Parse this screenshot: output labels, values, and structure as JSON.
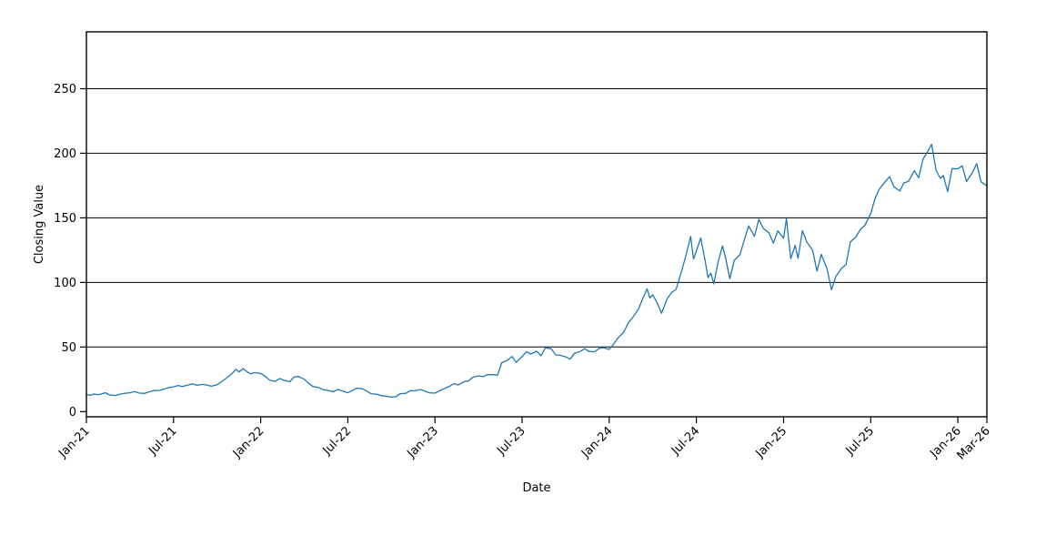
{
  "chart_data": {
    "type": "line",
    "title": "",
    "xlabel": "Date",
    "ylabel": "Closing Value",
    "series_name": "Closing Value",
    "series_color": "#1f77b4",
    "grid": true,
    "legend": "none",
    "gridline_values": [
      50,
      100,
      150,
      200,
      250
    ],
    "y_ticks": [
      0,
      50,
      100,
      150,
      200,
      250
    ],
    "ylim": [
      -4,
      294
    ],
    "x_unit": "months since Jan-2021",
    "xlim": [
      0,
      62
    ],
    "x_ticks": [
      {
        "label": "Jan-21",
        "m": 0
      },
      {
        "label": "Jul-21",
        "m": 6
      },
      {
        "label": "Jan-22",
        "m": 12
      },
      {
        "label": "Jul-22",
        "m": 18
      },
      {
        "label": "Jan-23",
        "m": 24
      },
      {
        "label": "Jul-23",
        "m": 30
      },
      {
        "label": "Jan-24",
        "m": 36
      },
      {
        "label": "Jul-24",
        "m": 42
      },
      {
        "label": "Jan-25",
        "m": 48
      },
      {
        "label": "Jul-25",
        "m": 54
      },
      {
        "label": "Jan-26",
        "m": 60
      },
      {
        "label": "Mar-26",
        "m": 62
      }
    ],
    "points": [
      [
        0,
        13.2
      ],
      [
        0.3,
        12.6
      ],
      [
        0.5,
        13.6
      ],
      [
        0.8,
        13.1
      ],
      [
        1,
        13.6
      ],
      [
        1.3,
        14.6
      ],
      [
        1.6,
        12.9
      ],
      [
        2,
        12.5
      ],
      [
        2.3,
        13.4
      ],
      [
        2.6,
        14.1
      ],
      [
        3,
        14.6
      ],
      [
        3.3,
        15.5
      ],
      [
        3.6,
        14.4
      ],
      [
        4,
        14.1
      ],
      [
        4.3,
        15.2
      ],
      [
        4.6,
        16.2
      ],
      [
        5,
        16.4
      ],
      [
        5.3,
        17.1
      ],
      [
        5.6,
        18.4
      ],
      [
        6,
        19.2
      ],
      [
        6.3,
        20.2
      ],
      [
        6.6,
        19.4
      ],
      [
        7,
        20.6
      ],
      [
        7.3,
        21.6
      ],
      [
        7.6,
        20.4
      ],
      [
        8,
        21.1
      ],
      [
        8.3,
        20.6
      ],
      [
        8.6,
        19.7
      ],
      [
        9,
        20.7
      ],
      [
        9.3,
        23.2
      ],
      [
        9.6,
        25.6
      ],
      [
        10,
        29.2
      ],
      [
        10.3,
        32.7
      ],
      [
        10.5,
        30.7
      ],
      [
        10.8,
        33.3
      ],
      [
        11,
        31.4
      ],
      [
        11.3,
        29.3
      ],
      [
        11.6,
        30.2
      ],
      [
        12,
        29.6
      ],
      [
        12.3,
        27.4
      ],
      [
        12.6,
        24.4
      ],
      [
        13,
        23.4
      ],
      [
        13.3,
        25.6
      ],
      [
        13.6,
        24.2
      ],
      [
        14,
        23.1
      ],
      [
        14.3,
        26.7
      ],
      [
        14.6,
        27.2
      ],
      [
        15,
        25.1
      ],
      [
        15.3,
        21.9
      ],
      [
        15.6,
        19.4
      ],
      [
        16,
        18.6
      ],
      [
        16.3,
        16.9
      ],
      [
        16.6,
        16.4
      ],
      [
        17,
        15.4
      ],
      [
        17.3,
        17.2
      ],
      [
        17.6,
        16.1
      ],
      [
        18,
        14.6
      ],
      [
        18.3,
        16.2
      ],
      [
        18.6,
        18.1
      ],
      [
        19,
        17.7
      ],
      [
        19.3,
        15.9
      ],
      [
        19.6,
        13.9
      ],
      [
        20,
        13.4
      ],
      [
        20.3,
        12.4
      ],
      [
        20.6,
        12.0
      ],
      [
        21,
        11.2
      ],
      [
        21.3,
        11.6
      ],
      [
        21.6,
        13.8
      ],
      [
        22,
        14.2
      ],
      [
        22.3,
        16.2
      ],
      [
        22.6,
        16.1
      ],
      [
        23,
        17.1
      ],
      [
        23.3,
        15.9
      ],
      [
        23.6,
        14.6
      ],
      [
        24,
        14.3
      ],
      [
        24.3,
        16.0
      ],
      [
        24.6,
        17.6
      ],
      [
        25,
        19.6
      ],
      [
        25.3,
        21.7
      ],
      [
        25.6,
        20.6
      ],
      [
        26,
        23.2
      ],
      [
        26.3,
        23.7
      ],
      [
        26.6,
        26.6
      ],
      [
        27,
        27.7
      ],
      [
        27.3,
        27.0
      ],
      [
        27.6,
        28.6
      ],
      [
        28,
        28.7
      ],
      [
        28.3,
        28.2
      ],
      [
        28.6,
        37.9
      ],
      [
        29,
        39.8
      ],
      [
        29.3,
        42.7
      ],
      [
        29.6,
        38.1
      ],
      [
        30,
        42.6
      ],
      [
        30.3,
        46.4
      ],
      [
        30.6,
        44.6
      ],
      [
        31,
        46.7
      ],
      [
        31.3,
        43.3
      ],
      [
        31.6,
        49.4
      ],
      [
        32,
        48.6
      ],
      [
        32.3,
        44.0
      ],
      [
        32.6,
        43.6
      ],
      [
        33,
        42.4
      ],
      [
        33.3,
        40.6
      ],
      [
        33.6,
        45.1
      ],
      [
        34,
        46.6
      ],
      [
        34.3,
        48.7
      ],
      [
        34.6,
        46.6
      ],
      [
        35,
        46.4
      ],
      [
        35.3,
        48.9
      ],
      [
        35.6,
        49.5
      ],
      [
        36,
        48.1
      ],
      [
        36.3,
        52.3
      ],
      [
        36.6,
        57.1
      ],
      [
        37,
        61.5
      ],
      [
        37.3,
        68.4
      ],
      [
        37.6,
        72.7
      ],
      [
        38,
        79.1
      ],
      [
        38.3,
        87.5
      ],
      [
        38.6,
        95.0
      ],
      [
        38.8,
        88.0
      ],
      [
        39,
        90.4
      ],
      [
        39.3,
        84.1
      ],
      [
        39.6,
        76.2
      ],
      [
        40,
        87.6
      ],
      [
        40.3,
        92.3
      ],
      [
        40.6,
        94.6
      ],
      [
        41,
        109.6
      ],
      [
        41.3,
        121.8
      ],
      [
        41.6,
        135.6
      ],
      [
        41.8,
        118.1
      ],
      [
        42,
        124.3
      ],
      [
        42.3,
        134.4
      ],
      [
        42.6,
        117.0
      ],
      [
        42.8,
        103.7
      ],
      [
        43,
        107.2
      ],
      [
        43.2,
        98.9
      ],
      [
        43.5,
        116.1
      ],
      [
        43.8,
        128.3
      ],
      [
        44,
        119.4
      ],
      [
        44.3,
        102.8
      ],
      [
        44.6,
        117.0
      ],
      [
        45,
        121.4
      ],
      [
        45.3,
        132.9
      ],
      [
        45.6,
        143.7
      ],
      [
        46,
        135.8
      ],
      [
        46.3,
        148.9
      ],
      [
        46.6,
        141.9
      ],
      [
        47,
        138.3
      ],
      [
        47.3,
        130.4
      ],
      [
        47.6,
        139.9
      ],
      [
        48,
        134.3
      ],
      [
        48.2,
        149.4
      ],
      [
        48.5,
        118.4
      ],
      [
        48.8,
        128.7
      ],
      [
        49,
        118.7
      ],
      [
        49.3,
        140.1
      ],
      [
        49.6,
        131.3
      ],
      [
        50,
        124.9
      ],
      [
        50.3,
        108.8
      ],
      [
        50.6,
        121.7
      ],
      [
        51,
        110.2
      ],
      [
        51.3,
        94.3
      ],
      [
        51.6,
        104.5
      ],
      [
        52,
        111.0
      ],
      [
        52.3,
        113.8
      ],
      [
        52.6,
        131.3
      ],
      [
        53,
        135.5
      ],
      [
        53.3,
        141.2
      ],
      [
        53.6,
        144.2
      ],
      [
        54,
        153.3
      ],
      [
        54.3,
        164.9
      ],
      [
        54.6,
        172.4
      ],
      [
        55,
        177.9
      ],
      [
        55.3,
        182.0
      ],
      [
        55.6,
        174.2
      ],
      [
        56,
        170.8
      ],
      [
        56.3,
        177.3
      ],
      [
        56.6,
        178.2
      ],
      [
        57,
        186.6
      ],
      [
        57.3,
        181.0
      ],
      [
        57.6,
        195.3
      ],
      [
        58,
        202.8
      ],
      [
        58.2,
        207.0
      ],
      [
        58.5,
        186.9
      ],
      [
        58.8,
        180.6
      ],
      [
        59,
        182.7
      ],
      [
        59.3,
        170.3
      ],
      [
        59.6,
        188.1
      ],
      [
        60,
        188.0
      ],
      [
        60.3,
        190.4
      ],
      [
        60.6,
        178.1
      ],
      [
        61,
        184.9
      ],
      [
        61.3,
        192.0
      ],
      [
        61.6,
        177.9
      ],
      [
        62,
        174.8
      ]
    ]
  }
}
